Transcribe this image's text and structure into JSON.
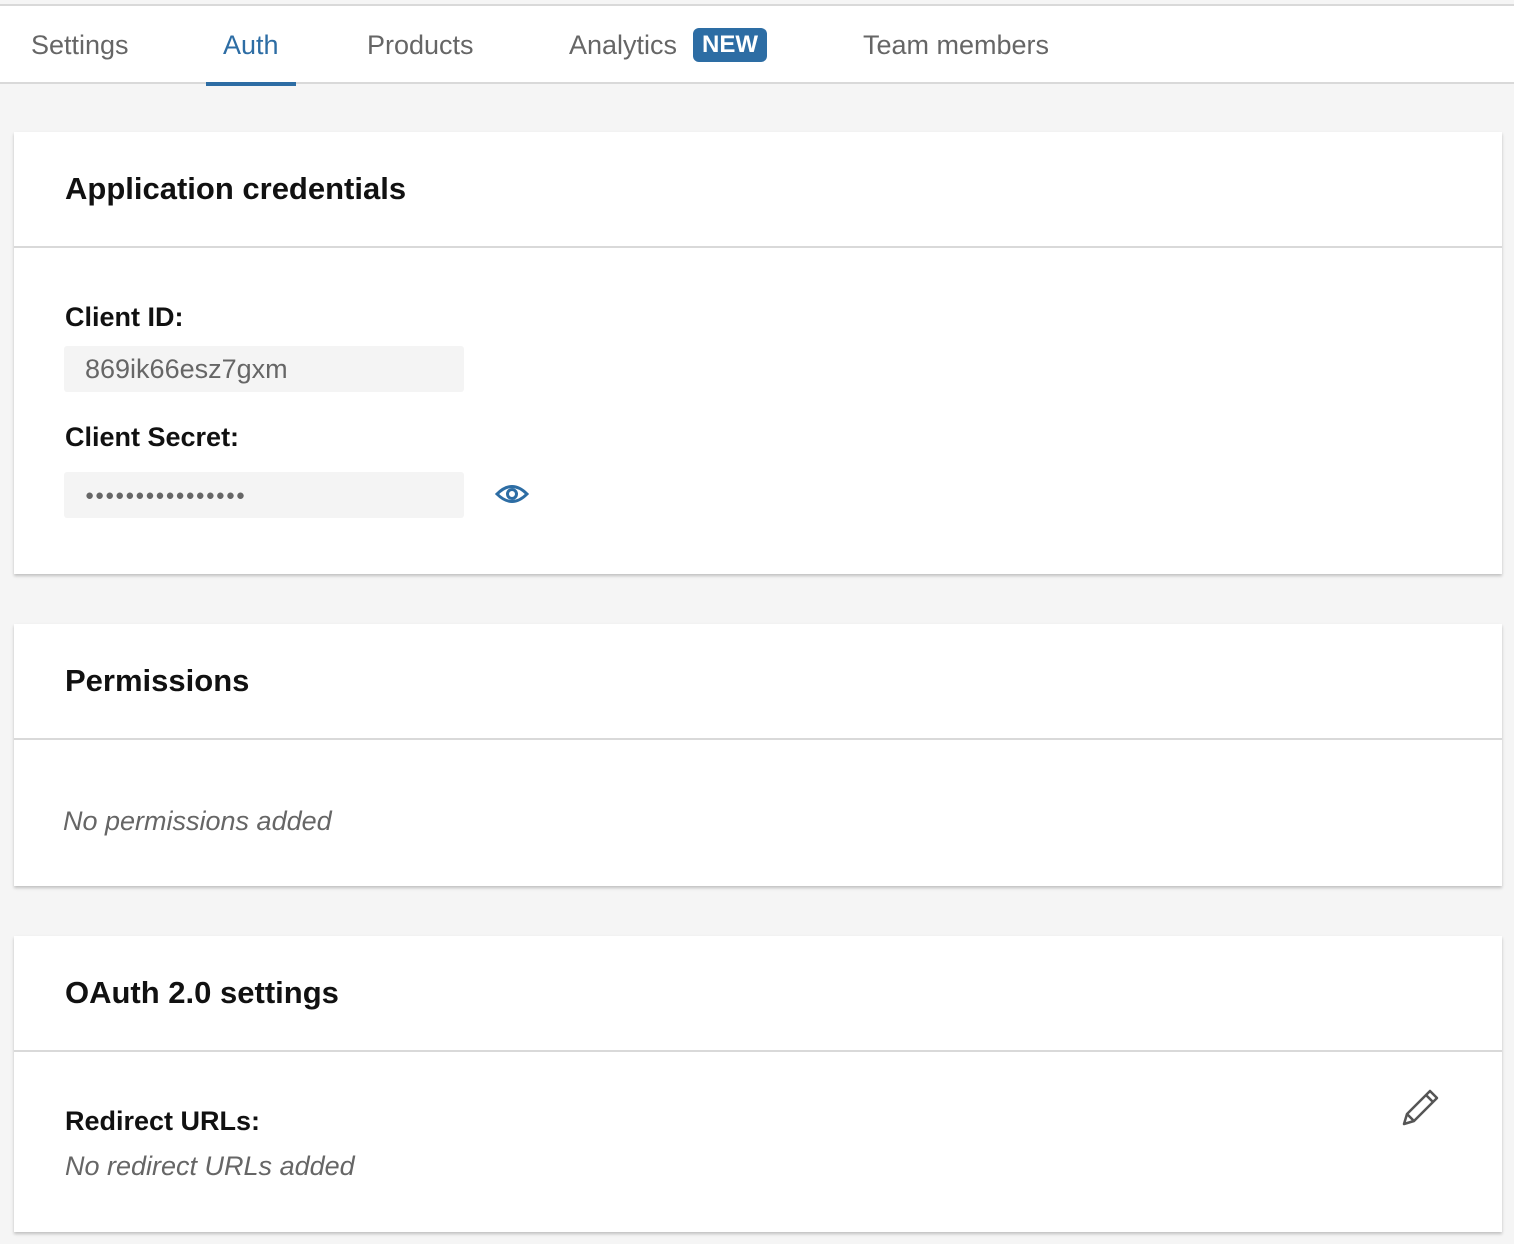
{
  "tabs": [
    {
      "label": "Settings"
    },
    {
      "label": "Auth",
      "active": true
    },
    {
      "label": "Products"
    },
    {
      "label": "Analytics",
      "badge": "NEW"
    },
    {
      "label": "Team members"
    }
  ],
  "credentials": {
    "title": "Application credentials",
    "client_id_label": "Client ID:",
    "client_id_value": "869ik66esz7gxm",
    "client_secret_label": "Client Secret:",
    "client_secret_value": "●●●●●●●●●●●●●●●●",
    "reveal_icon": "eye-icon"
  },
  "permissions": {
    "title": "Permissions",
    "empty": "No permissions added"
  },
  "oauth": {
    "title": "OAuth 2.0 settings",
    "redirect_label": "Redirect URLs:",
    "redirect_empty": "No redirect URLs added",
    "edit_icon": "pencil-icon"
  },
  "colors": {
    "accent": "#2d6da4"
  }
}
